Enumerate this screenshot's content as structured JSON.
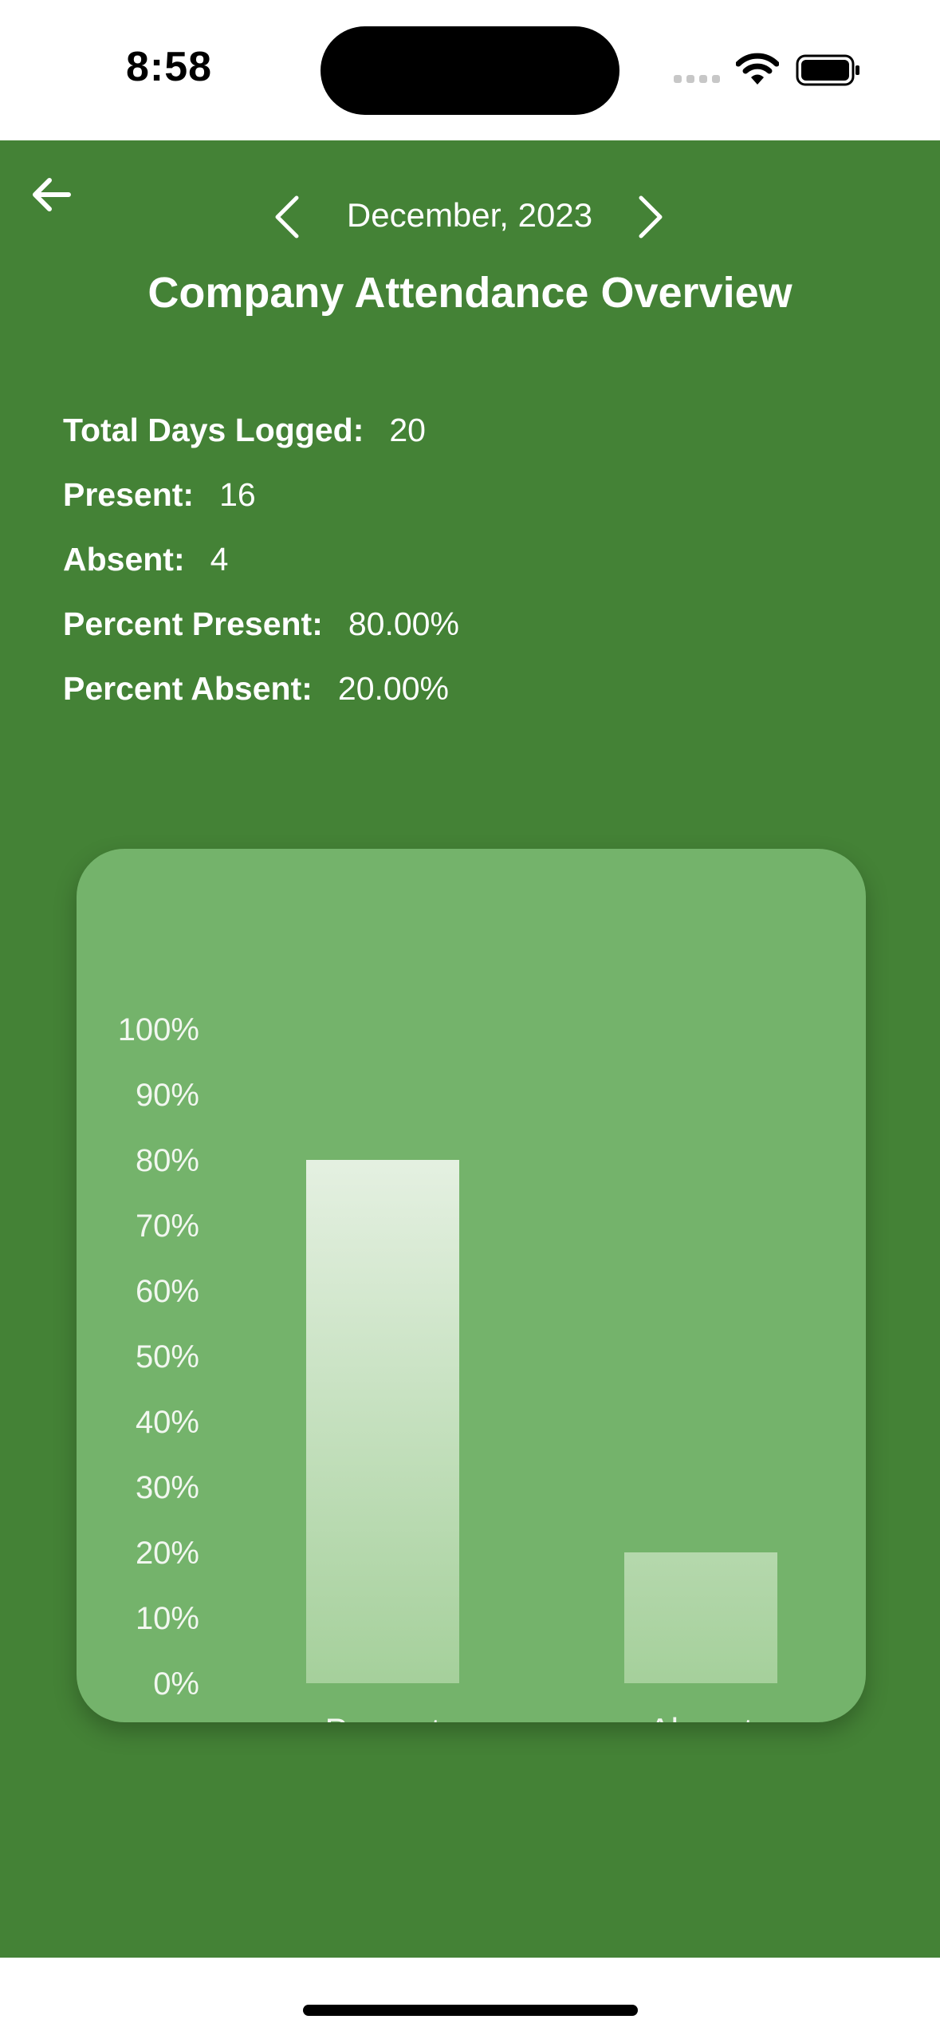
{
  "status_bar": {
    "time": "8:58",
    "icons": [
      "cellular-signal-icon",
      "wifi-icon",
      "battery-icon"
    ]
  },
  "header": {
    "back_icon": "arrow-left-icon",
    "prev_icon": "chevron-left-icon",
    "next_icon": "chevron-right-icon",
    "month_label": "December, 2023",
    "title": "Company Attendance Overview"
  },
  "stats": {
    "total_label": "Total Days Logged:",
    "total_value": "20",
    "present_label": "Present:",
    "present_value": "16",
    "absent_label": "Absent:",
    "absent_value": "4",
    "percent_present_label": "Percent Present:",
    "percent_present_value": "80.00%",
    "percent_absent_label": "Percent Absent:",
    "percent_absent_value": "20.00%"
  },
  "colors": {
    "background": "#448236",
    "card": "#74b36b",
    "bar_top": "#e6f1e3",
    "bar_bottom": "#a5d09b",
    "text": "#ffffff"
  },
  "chart_data": {
    "type": "bar",
    "categories": [
      "Present",
      "Absent"
    ],
    "values": [
      80,
      20
    ],
    "title": "",
    "xlabel": "",
    "ylabel": "",
    "ylim": [
      0,
      100
    ],
    "y_ticks": [
      "0%",
      "10%",
      "20%",
      "30%",
      "40%",
      "50%",
      "60%",
      "70%",
      "80%",
      "90%",
      "100%"
    ],
    "grid": false,
    "legend": "none"
  }
}
